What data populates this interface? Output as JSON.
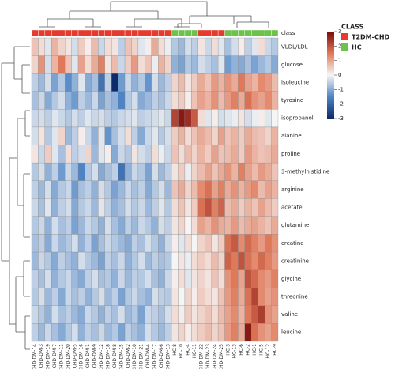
{
  "chart_data": {
    "type": "heatmap",
    "row_title": "class",
    "rows": [
      "VLDL/LDL",
      "glucose",
      "isoleucine",
      "tyrosine",
      "isopropanol",
      "alanine",
      "proline",
      "3-methylhistidine",
      "arginine",
      "acetate",
      "glutamine",
      "creatine",
      "creatinine",
      "glycine",
      "threonine",
      "valine",
      "leucine"
    ],
    "columns": [
      "CHD-DM-14",
      "CHD-DM-3",
      "CHD-DM-19",
      "CHD-DM-7",
      "CHD-DM-11",
      "CHD-DM-20",
      "CHD-DM-5",
      "CHD-DM-16",
      "CHD-DM-1",
      "CHD-DM-9",
      "CHD-DM-12",
      "CHD-DM-18",
      "CHD-DM-8",
      "CHD-DM-15",
      "CHD-DM-2",
      "CHD-DM-10",
      "CHD-DM-21",
      "CHD-DM-4",
      "CHD-DM-17",
      "CHD-DM-6",
      "CHD-DM-13",
      "HC-8",
      "HC-10",
      "HC-4",
      "HC-11",
      "CHD-DM-22",
      "CHD-DM-23",
      "CHD-DM-24",
      "CHD-DM-25",
      "HC-3",
      "HC-13",
      "HC-6",
      "HC-2",
      "HC-1",
      "HC-5",
      "HC-12",
      "HC-9"
    ],
    "column_classes": [
      "T2DM-CHD",
      "T2DM-CHD",
      "T2DM-CHD",
      "T2DM-CHD",
      "T2DM-CHD",
      "T2DM-CHD",
      "T2DM-CHD",
      "T2DM-CHD",
      "T2DM-CHD",
      "T2DM-CHD",
      "T2DM-CHD",
      "T2DM-CHD",
      "T2DM-CHD",
      "T2DM-CHD",
      "T2DM-CHD",
      "T2DM-CHD",
      "T2DM-CHD",
      "T2DM-CHD",
      "T2DM-CHD",
      "T2DM-CHD",
      "T2DM-CHD",
      "HC",
      "HC",
      "HC",
      "HC",
      "T2DM-CHD",
      "T2DM-CHD",
      "T2DM-CHD",
      "T2DM-CHD",
      "HC",
      "HC",
      "HC",
      "HC",
      "HC",
      "HC",
      "HC",
      "HC"
    ],
    "legend": {
      "title": "CLASS",
      "entries": [
        {
          "name": "T2DM-CHD",
          "color": "#e53a2f"
        },
        {
          "name": "HC",
          "color": "#6cc24a"
        }
      ]
    },
    "colorscale": [
      "#0d2a6b",
      "#4f84c4",
      "#f5f5f5",
      "#e0795a",
      "#7a0a0a"
    ],
    "zlim": [
      -3,
      3
    ],
    "zticks": [
      3,
      2,
      1,
      0,
      -1,
      -2,
      -3
    ],
    "values": [
      [
        0.6,
        0.3,
        -0.2,
        0.8,
        0.4,
        0.2,
        -0.3,
        0.5,
        0.1,
        0.7,
        -0.4,
        0.3,
        0.2,
        -0.5,
        0.6,
        0.4,
        -0.2,
        0.1,
        0.9,
        0.3,
        -0.1,
        -0.6,
        -0.8,
        -0.3,
        -0.5,
        0.2,
        -0.4,
        0.3,
        -0.2,
        -0.7,
        -0.3,
        0.1,
        -0.5,
        -0.2,
        0.3,
        -0.4,
        -0.6
      ],
      [
        0.4,
        1.2,
        -0.3,
        0.8,
        1.5,
        0.6,
        -0.2,
        1.0,
        0.3,
        0.9,
        1.4,
        0.2,
        0.7,
        -0.4,
        0.5,
        1.1,
        0.3,
        0.6,
        -0.1,
        0.8,
        0.4,
        -0.9,
        -1.1,
        -0.6,
        -0.8,
        -0.3,
        -0.5,
        -0.7,
        -0.2,
        -1.2,
        -0.9,
        -1.0,
        -0.7,
        -1.1,
        -0.8,
        -0.6,
        -1.0
      ],
      [
        -0.5,
        -0.8,
        -0.3,
        -1.1,
        -0.6,
        -1.4,
        -0.9,
        -0.2,
        -1.0,
        -0.7,
        -1.8,
        -0.5,
        -3.0,
        -1.2,
        -0.4,
        -0.9,
        -0.6,
        -1.3,
        -0.3,
        -0.8,
        -0.5,
        0.4,
        0.7,
        0.2,
        0.5,
        0.9,
        0.6,
        1.1,
        0.8,
        1.2,
        0.9,
        1.5,
        1.0,
        0.8,
        1.3,
        1.1,
        0.7
      ],
      [
        -0.7,
        -0.4,
        -1.0,
        -0.6,
        -0.3,
        -0.9,
        -1.2,
        -0.5,
        -0.8,
        -0.4,
        -1.1,
        -0.7,
        -0.9,
        -1.5,
        -0.6,
        -0.3,
        -1.0,
        -0.8,
        -0.5,
        -0.7,
        -0.4,
        0.3,
        0.5,
        0.1,
        0.6,
        1.0,
        0.8,
        1.2,
        0.7,
        1.1,
        1.4,
        0.9,
        1.6,
        1.2,
        1.0,
        1.3,
        0.8
      ],
      [
        -0.4,
        -0.3,
        -0.5,
        -0.2,
        -0.4,
        -0.6,
        -0.3,
        -0.5,
        -0.2,
        -0.4,
        -0.3,
        -0.5,
        -0.6,
        -0.4,
        -0.3,
        -0.2,
        -0.5,
        -0.4,
        -0.3,
        -0.2,
        -0.4,
        2.2,
        2.8,
        2.5,
        1.9,
        0.3,
        -0.2,
        0.1,
        -0.3,
        -0.2,
        -0.1,
        0.2,
        -0.3,
        -0.1,
        0.1,
        -0.2,
        0.0
      ],
      [
        -0.3,
        0.2,
        -0.6,
        -0.2,
        0.4,
        -0.8,
        -0.5,
        0.1,
        -0.4,
        -0.9,
        -0.2,
        -1.3,
        -0.7,
        -0.3,
        0.3,
        -0.5,
        -1.0,
        -0.4,
        -0.2,
        -0.6,
        -0.3,
        0.5,
        0.8,
        0.3,
        0.6,
        0.9,
        0.7,
        0.4,
        1.0,
        0.6,
        0.8,
        0.5,
        0.9,
        0.7,
        0.6,
        0.4,
        0.8
      ],
      [
        0.2,
        -0.4,
        0.5,
        -0.2,
        -0.7,
        0.3,
        -0.5,
        -0.3,
        0.4,
        -0.8,
        -0.2,
        0.1,
        -1.0,
        -0.4,
        -0.6,
        0.2,
        -0.3,
        -0.5,
        0.3,
        -0.1,
        -0.4,
        0.6,
        0.3,
        0.7,
        0.4,
        0.8,
        0.5,
        1.0,
        0.6,
        0.7,
        0.9,
        0.5,
        1.1,
        0.8,
        0.6,
        0.7,
        0.9
      ],
      [
        -0.6,
        -0.3,
        -0.9,
        -0.5,
        -1.2,
        -0.4,
        -0.8,
        -1.5,
        -0.6,
        -0.3,
        -1.0,
        -0.7,
        -0.5,
        -1.8,
        -0.9,
        -0.4,
        -0.6,
        -1.1,
        -0.3,
        -0.8,
        -0.5,
        0.2,
        0.5,
        -0.1,
        0.4,
        0.7,
        1.0,
        0.6,
        0.9,
        1.2,
        0.8,
        1.4,
        1.0,
        0.7,
        1.1,
        0.9,
        0.6
      ],
      [
        -0.5,
        -0.8,
        -0.3,
        -1.0,
        -0.6,
        -0.4,
        -1.2,
        -0.7,
        -0.5,
        -0.9,
        -0.3,
        -0.6,
        -1.1,
        -0.8,
        -0.4,
        -0.7,
        -0.5,
        -1.0,
        -0.6,
        -0.3,
        -0.8,
        0.6,
        0.9,
        0.4,
        0.7,
        1.3,
        1.6,
        1.0,
        1.4,
        0.9,
        1.2,
        0.8,
        1.1,
        1.3,
        0.7,
        1.0,
        0.8
      ],
      [
        -0.4,
        -0.7,
        -0.2,
        -0.9,
        -0.5,
        -0.3,
        -1.0,
        -0.6,
        -0.4,
        -0.8,
        -0.2,
        -0.5,
        -0.9,
        -0.7,
        -0.3,
        -0.6,
        -0.4,
        -0.8,
        -0.5,
        -0.2,
        -0.6,
        0.3,
        0.6,
        0.2,
        0.5,
        1.6,
        2.0,
        1.4,
        1.8,
        0.7,
        0.9,
        0.5,
        0.8,
        0.6,
        1.0,
        0.7,
        0.5
      ],
      [
        -0.6,
        -0.4,
        -0.9,
        -0.3,
        -0.7,
        -0.5,
        -1.1,
        -0.8,
        -0.4,
        -0.6,
        -0.9,
        -0.3,
        -0.7,
        -1.0,
        -0.5,
        -0.8,
        -0.4,
        -0.6,
        -0.9,
        -0.3,
        -0.5,
        0.2,
        0.4,
        0.0,
        0.3,
        1.0,
        0.8,
        1.2,
        0.9,
        0.8,
        1.1,
        0.7,
        0.9,
        1.0,
        0.8,
        0.6,
        0.9
      ],
      [
        -0.7,
        -0.5,
        -1.0,
        -0.4,
        -0.8,
        -0.6,
        -0.3,
        -0.9,
        -0.5,
        -1.1,
        -0.7,
        -0.4,
        -0.6,
        -0.8,
        -1.0,
        -0.5,
        -0.7,
        -0.3,
        -0.6,
        -0.9,
        -0.4,
        0.1,
        -0.2,
        0.3,
        0.0,
        0.4,
        0.6,
        0.2,
        0.5,
        1.6,
        1.9,
        1.3,
        1.7,
        1.4,
        1.1,
        1.5,
        1.2
      ],
      [
        -0.8,
        -0.4,
        -0.6,
        -1.0,
        -0.5,
        -0.7,
        -0.9,
        -0.3,
        -0.6,
        -0.8,
        -1.1,
        -0.5,
        -0.7,
        -0.4,
        -0.9,
        -0.6,
        -0.3,
        -0.8,
        -0.5,
        -0.7,
        -0.6,
        0.0,
        0.2,
        -0.1,
        0.3,
        0.5,
        0.3,
        0.7,
        0.4,
        1.8,
        1.5,
        2.0,
        1.6,
        1.3,
        1.7,
        1.4,
        1.1
      ],
      [
        -0.5,
        -0.7,
        -0.3,
        -0.9,
        -0.6,
        -0.4,
        -0.8,
        -1.0,
        -0.5,
        -0.3,
        -0.7,
        -0.6,
        -0.9,
        -0.4,
        -0.8,
        -0.5,
        -0.6,
        -0.3,
        -0.7,
        -0.9,
        -0.4,
        0.1,
        0.3,
        -0.2,
        0.2,
        0.4,
        0.2,
        0.6,
        0.3,
        1.2,
        1.5,
        1.0,
        2.0,
        1.7,
        1.3,
        1.1,
        1.4
      ],
      [
        -0.6,
        -0.3,
        -0.8,
        -0.5,
        -1.0,
        -0.4,
        -0.7,
        -0.5,
        -0.9,
        -0.6,
        -0.3,
        -0.8,
        -0.5,
        -1.1,
        -0.6,
        -0.4,
        -0.7,
        -0.9,
        -0.3,
        -0.5,
        -0.6,
        0.2,
        0.0,
        0.4,
        0.1,
        0.5,
        0.3,
        0.2,
        0.6,
        1.1,
        1.4,
        0.9,
        1.6,
        2.2,
        1.3,
        1.0,
        1.2
      ],
      [
        -0.4,
        -0.6,
        -0.9,
        -0.3,
        -0.7,
        -0.5,
        -0.8,
        -1.0,
        -0.4,
        -0.6,
        -0.9,
        -0.5,
        -0.7,
        -0.3,
        -0.8,
        -0.6,
        -1.1,
        -0.4,
        -0.5,
        -0.7,
        -0.3,
        0.3,
        0.1,
        0.5,
        0.2,
        0.4,
        0.6,
        0.3,
        0.7,
        1.0,
        1.3,
        0.8,
        1.5,
        1.9,
        2.3,
        1.2,
        1.0
      ],
      [
        -0.5,
        -0.8,
        -0.4,
        -0.7,
        -1.0,
        -0.6,
        -0.3,
        -0.9,
        -0.5,
        -0.7,
        -0.4,
        -0.8,
        -0.6,
        -1.1,
        -0.5,
        -0.7,
        -0.9,
        -0.3,
        -0.6,
        -0.8,
        -0.5,
        0.2,
        0.4,
        0.1,
        0.3,
        0.5,
        0.7,
        0.4,
        0.6,
        1.1,
        1.4,
        0.9,
        2.8,
        1.6,
        1.2,
        1.0,
        1.3
      ]
    ]
  }
}
